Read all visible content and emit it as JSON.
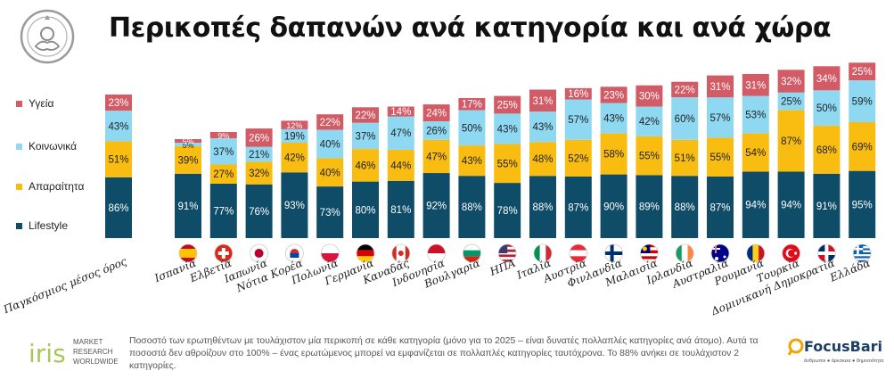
{
  "title": "Περικοπές δαπανών ανά κατηγορία και ανά χώρα",
  "footnote": "Ποσοστό των ερωτηθέντων με τουλάχιστον μία περικοπή σε κάθε κατηγορία (μόνο για το 2025 – είναι δυνατές πολλαπλές κατηγορίες ανά άτομο). Αυτά τα ποσοστά δεν αθροίζουν στο 100% – ένας ερωτώμενος μπορεί να εμφανίζεται σε πολλαπλές κατηγορίες ταυτόχρονα. Το 88% ανήκει σε τουλάχιστον 2 κατηγορίες.",
  "logos": {
    "iris": {
      "main": "iris",
      "line1": "MARKET",
      "line2": "RESEARCH",
      "line3": "WORLDWIDE"
    },
    "focus": {
      "main": "FocusBari",
      "tagline": "άνθρωποι ● άρεσκεια ● δημοσιότητα"
    }
  },
  "colors": {
    "Lifestyle": "#0f4c67",
    "Απαραίτητα": "#f8bd10",
    "Κοινωνικά": "#8fd8f2",
    "Υγεία": "#d25b66",
    "label_light": "#ffffff",
    "label_dark": "#222222"
  },
  "legend": [
    {
      "name": "Υγεία",
      "color": "#d25b66"
    },
    {
      "name": "Κοινωνικά",
      "color": "#8fd8f2"
    },
    {
      "name": "Απαραίτητα",
      "color": "#f8bd10"
    },
    {
      "name": "Lifestyle",
      "color": "#0f4c67"
    }
  ],
  "chart_data": {
    "type": "bar",
    "stacked": true,
    "value_suffix": "%",
    "categories": [
      "Παγκόσμιος μέσος όρος",
      "Ισπανία",
      "Ελβετία",
      "Ιαπωνία",
      "Νότια Κορέα",
      "Πολωνία",
      "Γερμανία",
      "Καναδάς",
      "Ινδονησία",
      "Βουλγαρία",
      "ΗΠΑ",
      "Ιταλία",
      "Αυστρία",
      "Φινλανδία",
      "Μαλαισία",
      "Ιρλανδία",
      "Αυστραλία",
      "Ρουμανία",
      "Τουρκία",
      "Δομινικανή Δημοκρατία",
      "Ελλάδα"
    ],
    "flags": [
      "",
      "Spain",
      "Switzerland",
      "Japan",
      "South Korea",
      "Poland",
      "Germany",
      "Canada",
      "Indonesia",
      "Bulgaria",
      "USA",
      "Italy",
      "Austria",
      "Finland",
      "Malaysia",
      "Ireland",
      "Australia",
      "Romania",
      "Turkey",
      "Dominican Republic",
      "Greece"
    ],
    "series": [
      {
        "name": "Lifestyle",
        "values": [
          86,
          91,
          77,
          76,
          93,
          73,
          80,
          81,
          92,
          88,
          78,
          88,
          87,
          90,
          89,
          88,
          87,
          94,
          94,
          91,
          95
        ]
      },
      {
        "name": "Απαραίτητα",
        "values": [
          51,
          39,
          27,
          32,
          42,
          40,
          46,
          44,
          47,
          43,
          55,
          48,
          52,
          58,
          55,
          51,
          55,
          54,
          87,
          68,
          69
        ]
      },
      {
        "name": "Κοινωνικά",
        "values": [
          43,
          5,
          37,
          21,
          19,
          40,
          37,
          47,
          26,
          50,
          43,
          43,
          57,
          43,
          42,
          60,
          57,
          53,
          25,
          50,
          59
        ]
      },
      {
        "name": "Υγεία",
        "values": [
          23,
          5,
          9,
          26,
          12,
          22,
          22,
          14,
          24,
          17,
          25,
          31,
          16,
          23,
          30,
          22,
          31,
          31,
          32,
          34,
          25
        ]
      }
    ]
  }
}
